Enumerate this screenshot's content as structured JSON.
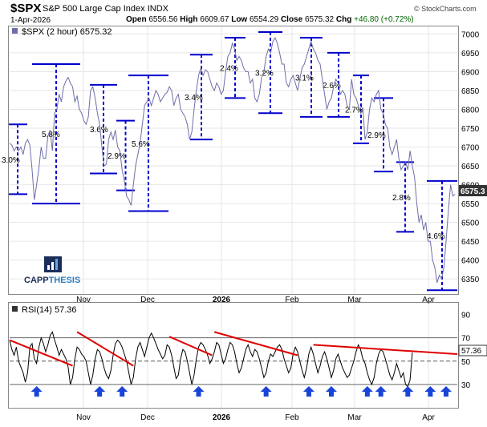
{
  "header": {
    "symbol": "$SPX",
    "name": "S&P 500 Large Cap Index",
    "exchange": "INDX",
    "date": "1-Apr-2026",
    "open_label": "Open",
    "open": "6556.56",
    "high_label": "High",
    "high": "6609.67",
    "low_label": "Low",
    "low": "6554.29",
    "close_label": "Close",
    "close": "6575.32",
    "chg_label": "Chg",
    "chg": "+46.80 (+0.72%)",
    "watermark": "© StockCharts.com",
    "legend": "$SPX (2 hour) 6575.32",
    "price_badge": "6575.3",
    "rsi_legend": "RSI(14) 57.36",
    "rsi_badge": "57.36"
  },
  "logo": {
    "text_a": "CAPP",
    "text_b": "THESIS"
  },
  "colors": {
    "price": "#6e6ea8",
    "range": "#0000cc",
    "trend": "#e00000",
    "arrow": "#1a44d8",
    "rsi": "#000000",
    "grid": "#e6e6e6",
    "badge": "#333333"
  },
  "chart_data": [
    {
      "type": "line",
      "title": "$SPX (2 hour)",
      "y_axis_ticks": [
        6350,
        6400,
        6450,
        6500,
        6550,
        6600,
        6650,
        6700,
        6750,
        6800,
        6850,
        6900,
        6950,
        7000
      ],
      "x_axis_labels": [
        "Nov",
        "Dec",
        "2026",
        "Feb",
        "Mar",
        "Apr"
      ],
      "ylim": [
        6310,
        7020
      ],
      "grid": true,
      "series": [
        {
          "values": [
            6710,
            6705,
            6690,
            6700,
            6690,
            6700,
            6680,
            6710,
            6720,
            6705,
            6640,
            6560,
            6600,
            6645,
            6700,
            6670,
            6670,
            6730,
            6745,
            6690,
            6790,
            6800,
            6840,
            6820,
            6860,
            6875,
            6885,
            6870,
            6860,
            6820,
            6835,
            6800,
            6790,
            6770,
            6760,
            6780,
            6850,
            6860,
            6830,
            6790,
            6760,
            6700,
            6650,
            6655,
            6720,
            6740,
            6720,
            6745,
            6700,
            6690,
            6640,
            6610,
            6570,
            6560,
            6545,
            6600,
            6650,
            6680,
            6710,
            6760,
            6810,
            6820,
            6830,
            6810,
            6830,
            6850,
            6840,
            6820,
            6830,
            6840,
            6845,
            6860,
            6850,
            6810,
            6830,
            6840,
            6800,
            6790,
            6780,
            6760,
            6720,
            6740,
            6800,
            6850,
            6890,
            6910,
            6890,
            6905,
            6900,
            6880,
            6860,
            6850,
            6870,
            6860,
            6840,
            6850,
            6900,
            6940,
            6950,
            6975,
            6960,
            6930,
            6940,
            6930,
            6910,
            6900,
            6900,
            6870,
            6880,
            6830,
            6820,
            6840,
            6885,
            6900,
            6940,
            6960,
            6950,
            6980,
            6990,
            6975,
            6950,
            6920,
            6920,
            6870,
            6860,
            6880,
            6890,
            6870,
            6850,
            6880,
            6910,
            6920,
            6940,
            6960,
            6980,
            6960,
            6950,
            6930,
            6920,
            6880,
            6840,
            6800,
            6820,
            6830,
            6860,
            6880,
            6870,
            6840,
            6850,
            6840,
            6810,
            6800,
            6880,
            6840,
            6830,
            6810,
            6790,
            6805,
            6720,
            6740,
            6800,
            6830,
            6820,
            6840,
            6850,
            6800,
            6790,
            6760,
            6750,
            6700,
            6680,
            6700,
            6720,
            6670,
            6640,
            6650,
            6660,
            6640,
            6690,
            6650,
            6620,
            6550,
            6500,
            6520,
            6480,
            6500,
            6450,
            6450,
            6400,
            6380,
            6340,
            6360,
            6350,
            6380,
            6450,
            6530,
            6600,
            6570,
            6575.32
          ],
          "xlim": [
            0,
            199
          ]
        }
      ],
      "range_annotations": [
        {
          "label": "3.0%",
          "from": 6760,
          "to": 6575
        },
        {
          "label": "5.8%",
          "from": 6920,
          "to": 6550
        },
        {
          "label": "3.6%",
          "from": 6865,
          "to": 6630
        },
        {
          "label": "2.9%",
          "from": 6770,
          "to": 6585
        },
        {
          "label": "5.6%",
          "from": 6890,
          "to": 6530
        },
        {
          "label": "3.4%",
          "from": 6945,
          "to": 6720
        },
        {
          "label": "2.4%",
          "from": 6990,
          "to": 6830
        },
        {
          "label": "3.2%",
          "from": 7005,
          "to": 6790
        },
        {
          "label": "3.1%",
          "from": 6990,
          "to": 6780
        },
        {
          "label": "2.6%",
          "from": 6950,
          "to": 6780
        },
        {
          "label": "2.7%",
          "from": 6890,
          "to": 6710
        },
        {
          "label": "2.9%",
          "from": 6830,
          "to": 6635
        },
        {
          "label": "2.8%",
          "from": 6660,
          "to": 6475
        },
        {
          "label": "4.6%",
          "from": 6610,
          "to": 6320
        }
      ]
    },
    {
      "type": "line",
      "title": "RSI(14)",
      "y_axis_ticks": [
        30,
        50,
        70,
        90
      ],
      "x_axis_labels": [
        "Nov",
        "Dec",
        "2026",
        "Feb",
        "Mar",
        "Apr"
      ],
      "ylim": [
        10,
        100
      ],
      "grid": true,
      "series": [
        {
          "values": [
            68,
            60,
            55,
            62,
            50,
            45,
            40,
            32,
            40,
            62,
            65,
            52,
            48,
            62,
            70,
            65,
            58,
            64,
            72,
            75,
            68,
            62,
            55,
            60,
            56,
            52,
            45,
            30,
            36,
            52,
            62,
            60,
            56,
            54,
            50,
            40,
            30,
            38,
            52,
            60,
            58,
            52,
            44,
            38,
            35,
            42,
            55,
            65,
            68,
            66,
            62,
            56,
            50,
            40,
            30,
            36,
            52,
            62,
            66,
            60,
            54,
            62,
            70,
            74,
            70,
            65,
            60,
            56,
            52,
            55,
            64,
            62,
            55,
            45,
            35,
            38,
            52,
            60,
            58,
            50,
            40,
            30,
            38,
            52,
            62,
            66,
            64,
            60,
            55,
            48,
            52,
            58,
            66,
            64,
            56,
            48,
            52,
            60,
            66,
            64,
            58,
            48,
            40,
            44,
            52,
            60,
            64,
            58,
            54,
            60,
            58,
            52,
            44,
            36,
            40,
            50,
            56,
            54,
            58,
            62,
            64,
            60,
            52,
            46,
            40,
            44,
            56,
            62,
            58,
            50,
            42,
            36,
            44,
            56,
            62,
            56,
            48,
            40,
            46,
            54,
            58,
            52,
            44,
            36,
            42,
            52,
            56,
            50,
            44,
            40,
            36,
            38,
            44,
            50,
            58,
            64,
            60,
            52,
            48,
            40,
            34,
            30,
            36,
            48,
            56,
            60,
            58,
            52,
            45,
            38,
            34,
            40,
            48,
            42,
            36,
            40,
            30,
            28,
            34,
            57.36
          ],
          "xlim": [
            0,
            199
          ]
        }
      ],
      "reference_lines": [
        30,
        50,
        70
      ],
      "trendlines": [
        {
          "from": [
            0,
            68
          ],
          "to": [
            28,
            46
          ]
        },
        {
          "from": [
            30,
            75
          ],
          "to": [
            55,
            46
          ]
        },
        {
          "from": [
            71,
            71
          ],
          "to": [
            90,
            55
          ]
        },
        {
          "from": [
            91,
            75
          ],
          "to": [
            128,
            55
          ]
        },
        {
          "from": [
            135,
            64
          ],
          "to": [
            199,
            56
          ]
        }
      ],
      "arrow_markers_at": [
        12,
        40,
        50,
        84,
        114,
        133,
        143,
        159,
        165,
        177,
        187,
        194
      ]
    }
  ]
}
